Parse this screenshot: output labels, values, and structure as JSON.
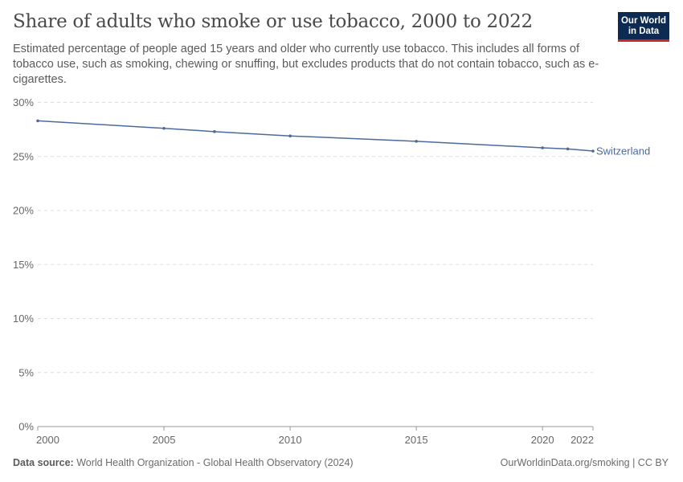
{
  "header": {
    "title": "Share of adults who smoke or use tobacco, 2000 to 2022",
    "subtitle": "Estimated percentage of people aged 15 years and older who currently use tobacco. This includes all forms of tobacco use, such as smoking, chewing or snuffing, but excludes products that do not contain tobacco, such as e-cigarettes.",
    "logo": "Our World in Data"
  },
  "footer": {
    "source_label": "Data source:",
    "source": "World Health Organization - Global Health Observatory (2024)",
    "link": "OurWorldinData.org/smoking | CC BY"
  },
  "chart_data": {
    "type": "line",
    "title": "Share of adults who smoke or use tobacco, 2000 to 2022",
    "xlabel": "",
    "ylabel": "",
    "xlim": [
      2000,
      2022
    ],
    "ylim": [
      0,
      30
    ],
    "x_ticks": [
      2000,
      2005,
      2010,
      2015,
      2020,
      2022
    ],
    "y_ticks": [
      0,
      5,
      10,
      15,
      20,
      25,
      30
    ],
    "y_tick_labels": [
      "0%",
      "5%",
      "10%",
      "15%",
      "20%",
      "25%",
      "30%"
    ],
    "grid": "horizontal dashed",
    "legend": "inline-right",
    "series": [
      {
        "name": "Switzerland",
        "color": "#4c6a9c",
        "x": [
          2000,
          2005,
          2007,
          2010,
          2015,
          2020,
          2021,
          2022
        ],
        "values": [
          28.3,
          27.6,
          27.3,
          26.9,
          26.4,
          25.8,
          25.7,
          25.5
        ]
      }
    ]
  }
}
